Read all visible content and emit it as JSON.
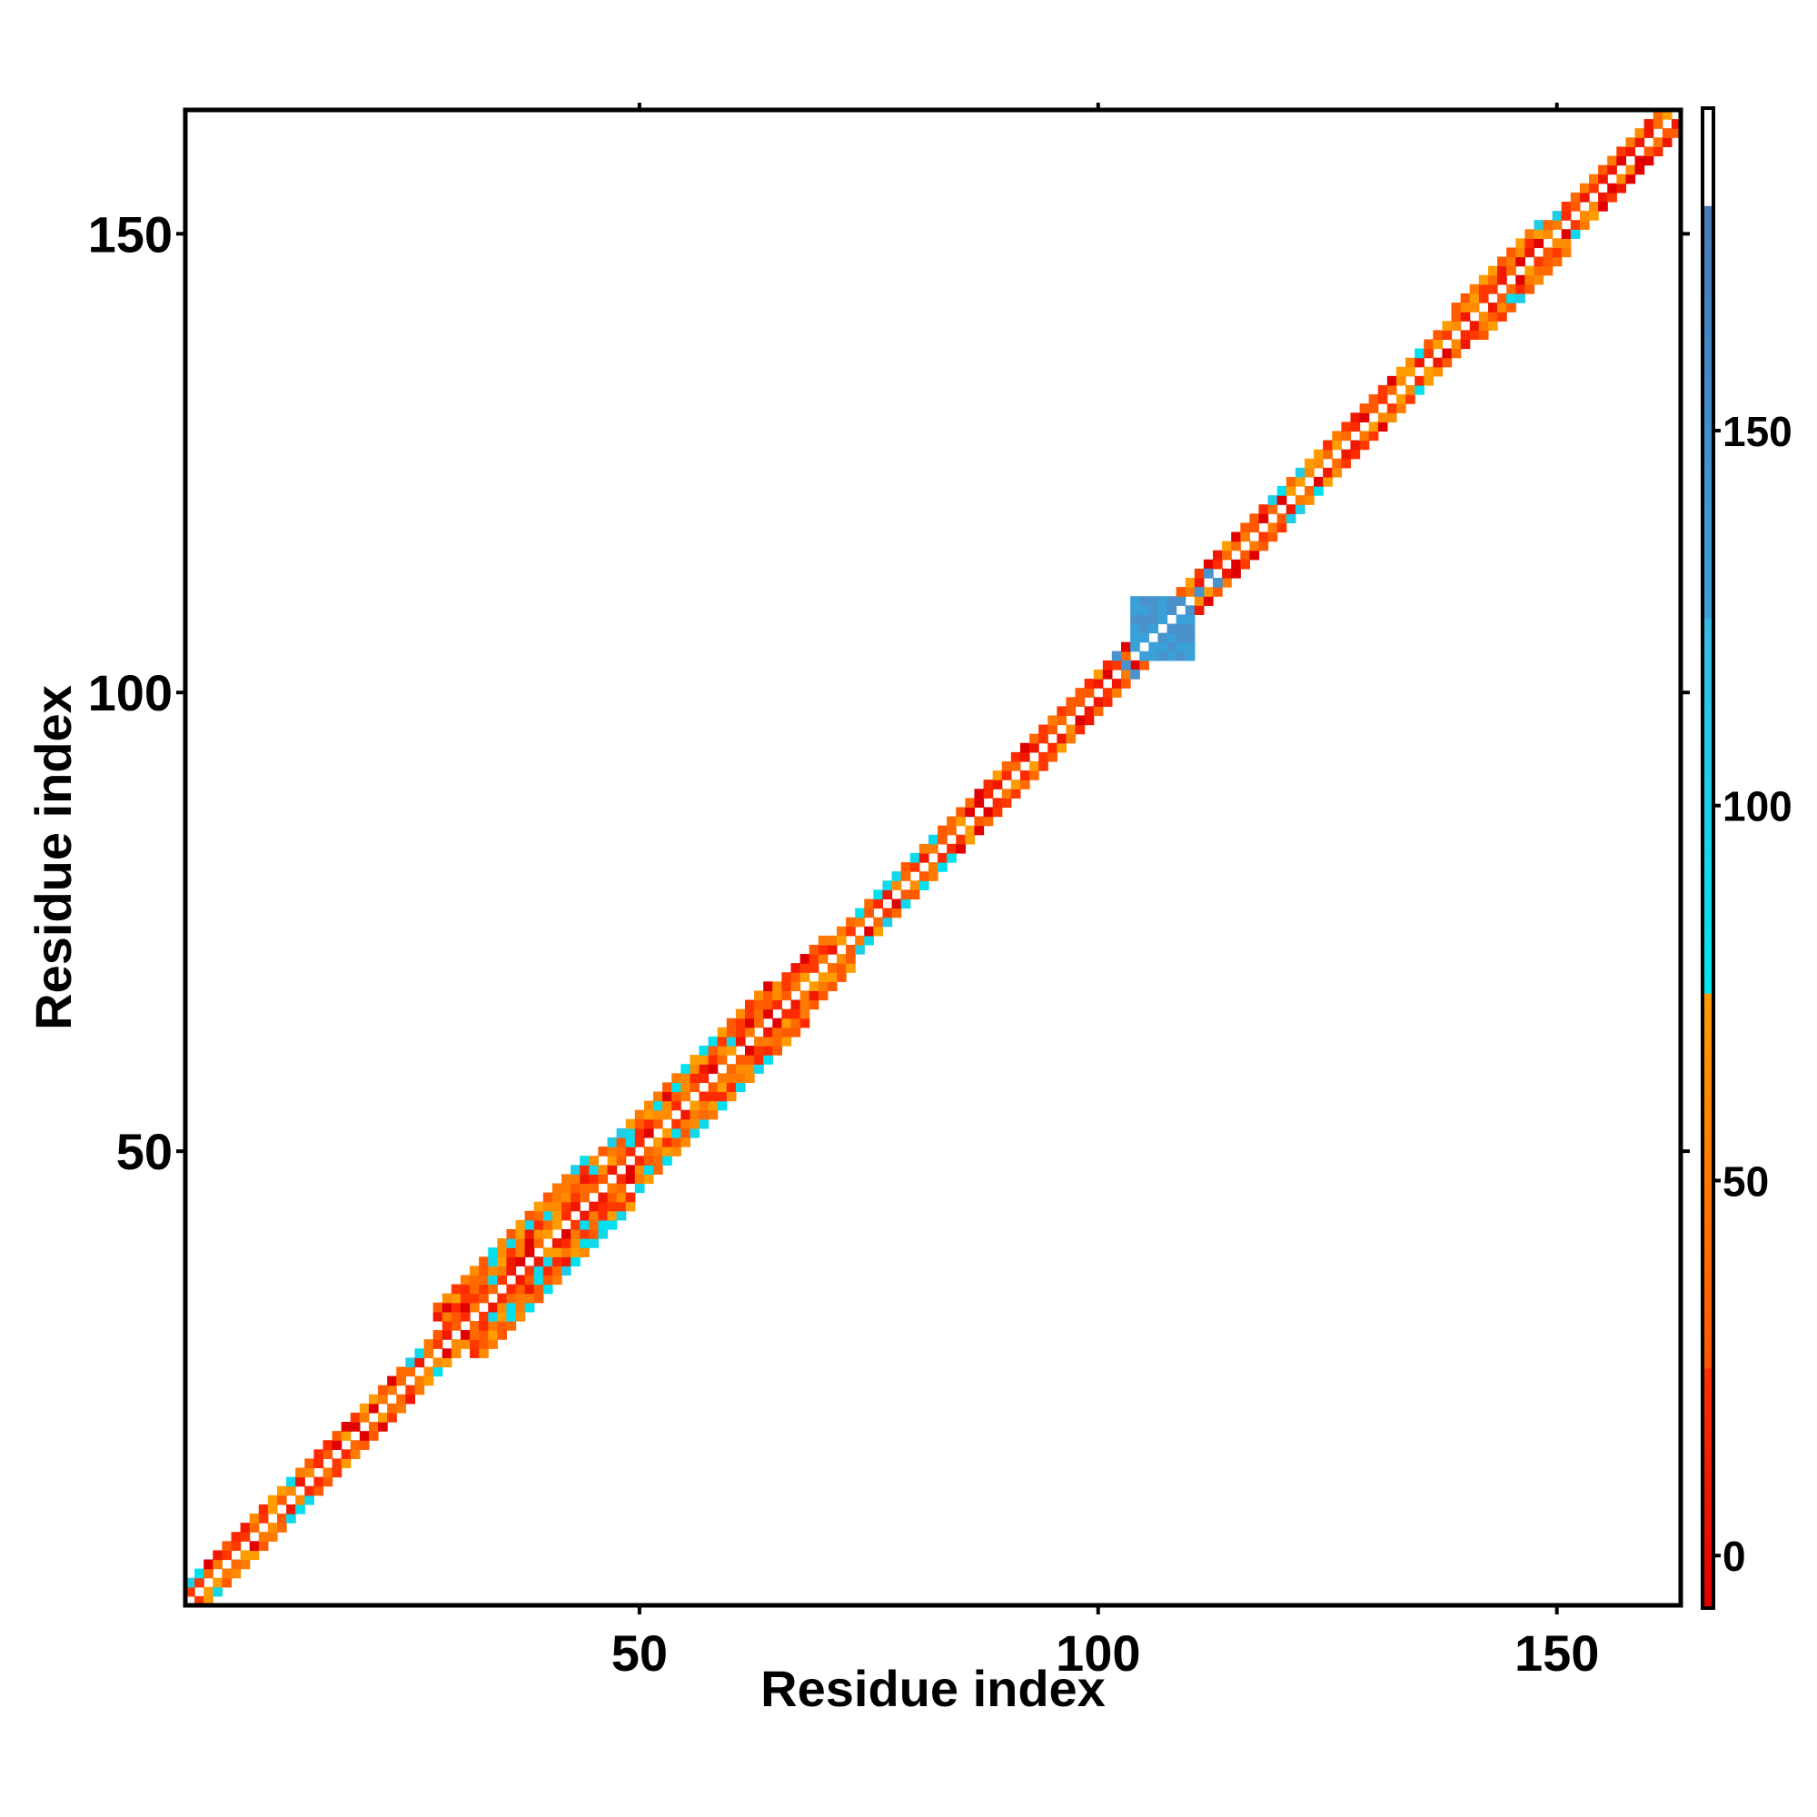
{
  "chart_data": {
    "type": "heatmap",
    "title": "",
    "xlabel": "Residue index",
    "ylabel": "Residue index",
    "xlim": [
      0.5,
      163.5
    ],
    "ylim": [
      0.5,
      163.5
    ],
    "xticks": [
      50,
      100,
      150
    ],
    "yticks": [
      50,
      100,
      150
    ],
    "n_residues": 163,
    "grid": false,
    "colorbar": {
      "position": "right",
      "ticks": [
        0,
        50,
        100,
        150
      ],
      "range": [
        -7,
        193
      ],
      "segments": [
        {
          "from": -7,
          "to": 25,
          "colors": [
            "#e00000",
            "#ff3000"
          ]
        },
        {
          "from": 25,
          "to": 75,
          "colors": [
            "#ff5500",
            "#ff9a00"
          ]
        },
        {
          "from": 75,
          "to": 125,
          "colors": [
            "#00e6f0",
            "#38b8e0"
          ]
        },
        {
          "from": 125,
          "to": 180,
          "colors": [
            "#3aa0d8",
            "#4a78b8"
          ]
        },
        {
          "from": 180,
          "to": 193,
          "colors": [
            "#ffffff",
            "#ffffff"
          ]
        }
      ]
    },
    "band": {
      "description_values": "matrix of pairwise values along the diagonal (|i-j| <= width)",
      "default_width": 2,
      "wide_regions": [
        {
          "from": 30,
          "to": 47,
          "width": 5
        },
        {
          "from": 48,
          "to": 66,
          "width": 4
        },
        {
          "from": 66,
          "to": 72,
          "width": 3
        },
        {
          "from": 140,
          "to": 150,
          "width": 3
        }
      ],
      "cyan_regions": [
        [
          1,
          3
        ],
        [
          11,
          14
        ],
        [
          25,
          28
        ],
        [
          33,
          62
        ],
        [
          73,
          83
        ],
        [
          120,
          124
        ],
        [
          134,
          137
        ],
        [
          144,
          151
        ]
      ],
      "blue_block": {
        "from": 104,
        "to": 110,
        "value": 140
      },
      "blue_arms": [
        [
          102,
          104
        ],
        [
          103,
          103
        ],
        [
          111,
          111
        ],
        [
          112,
          113
        ],
        [
          113,
          112
        ]
      ]
    }
  }
}
